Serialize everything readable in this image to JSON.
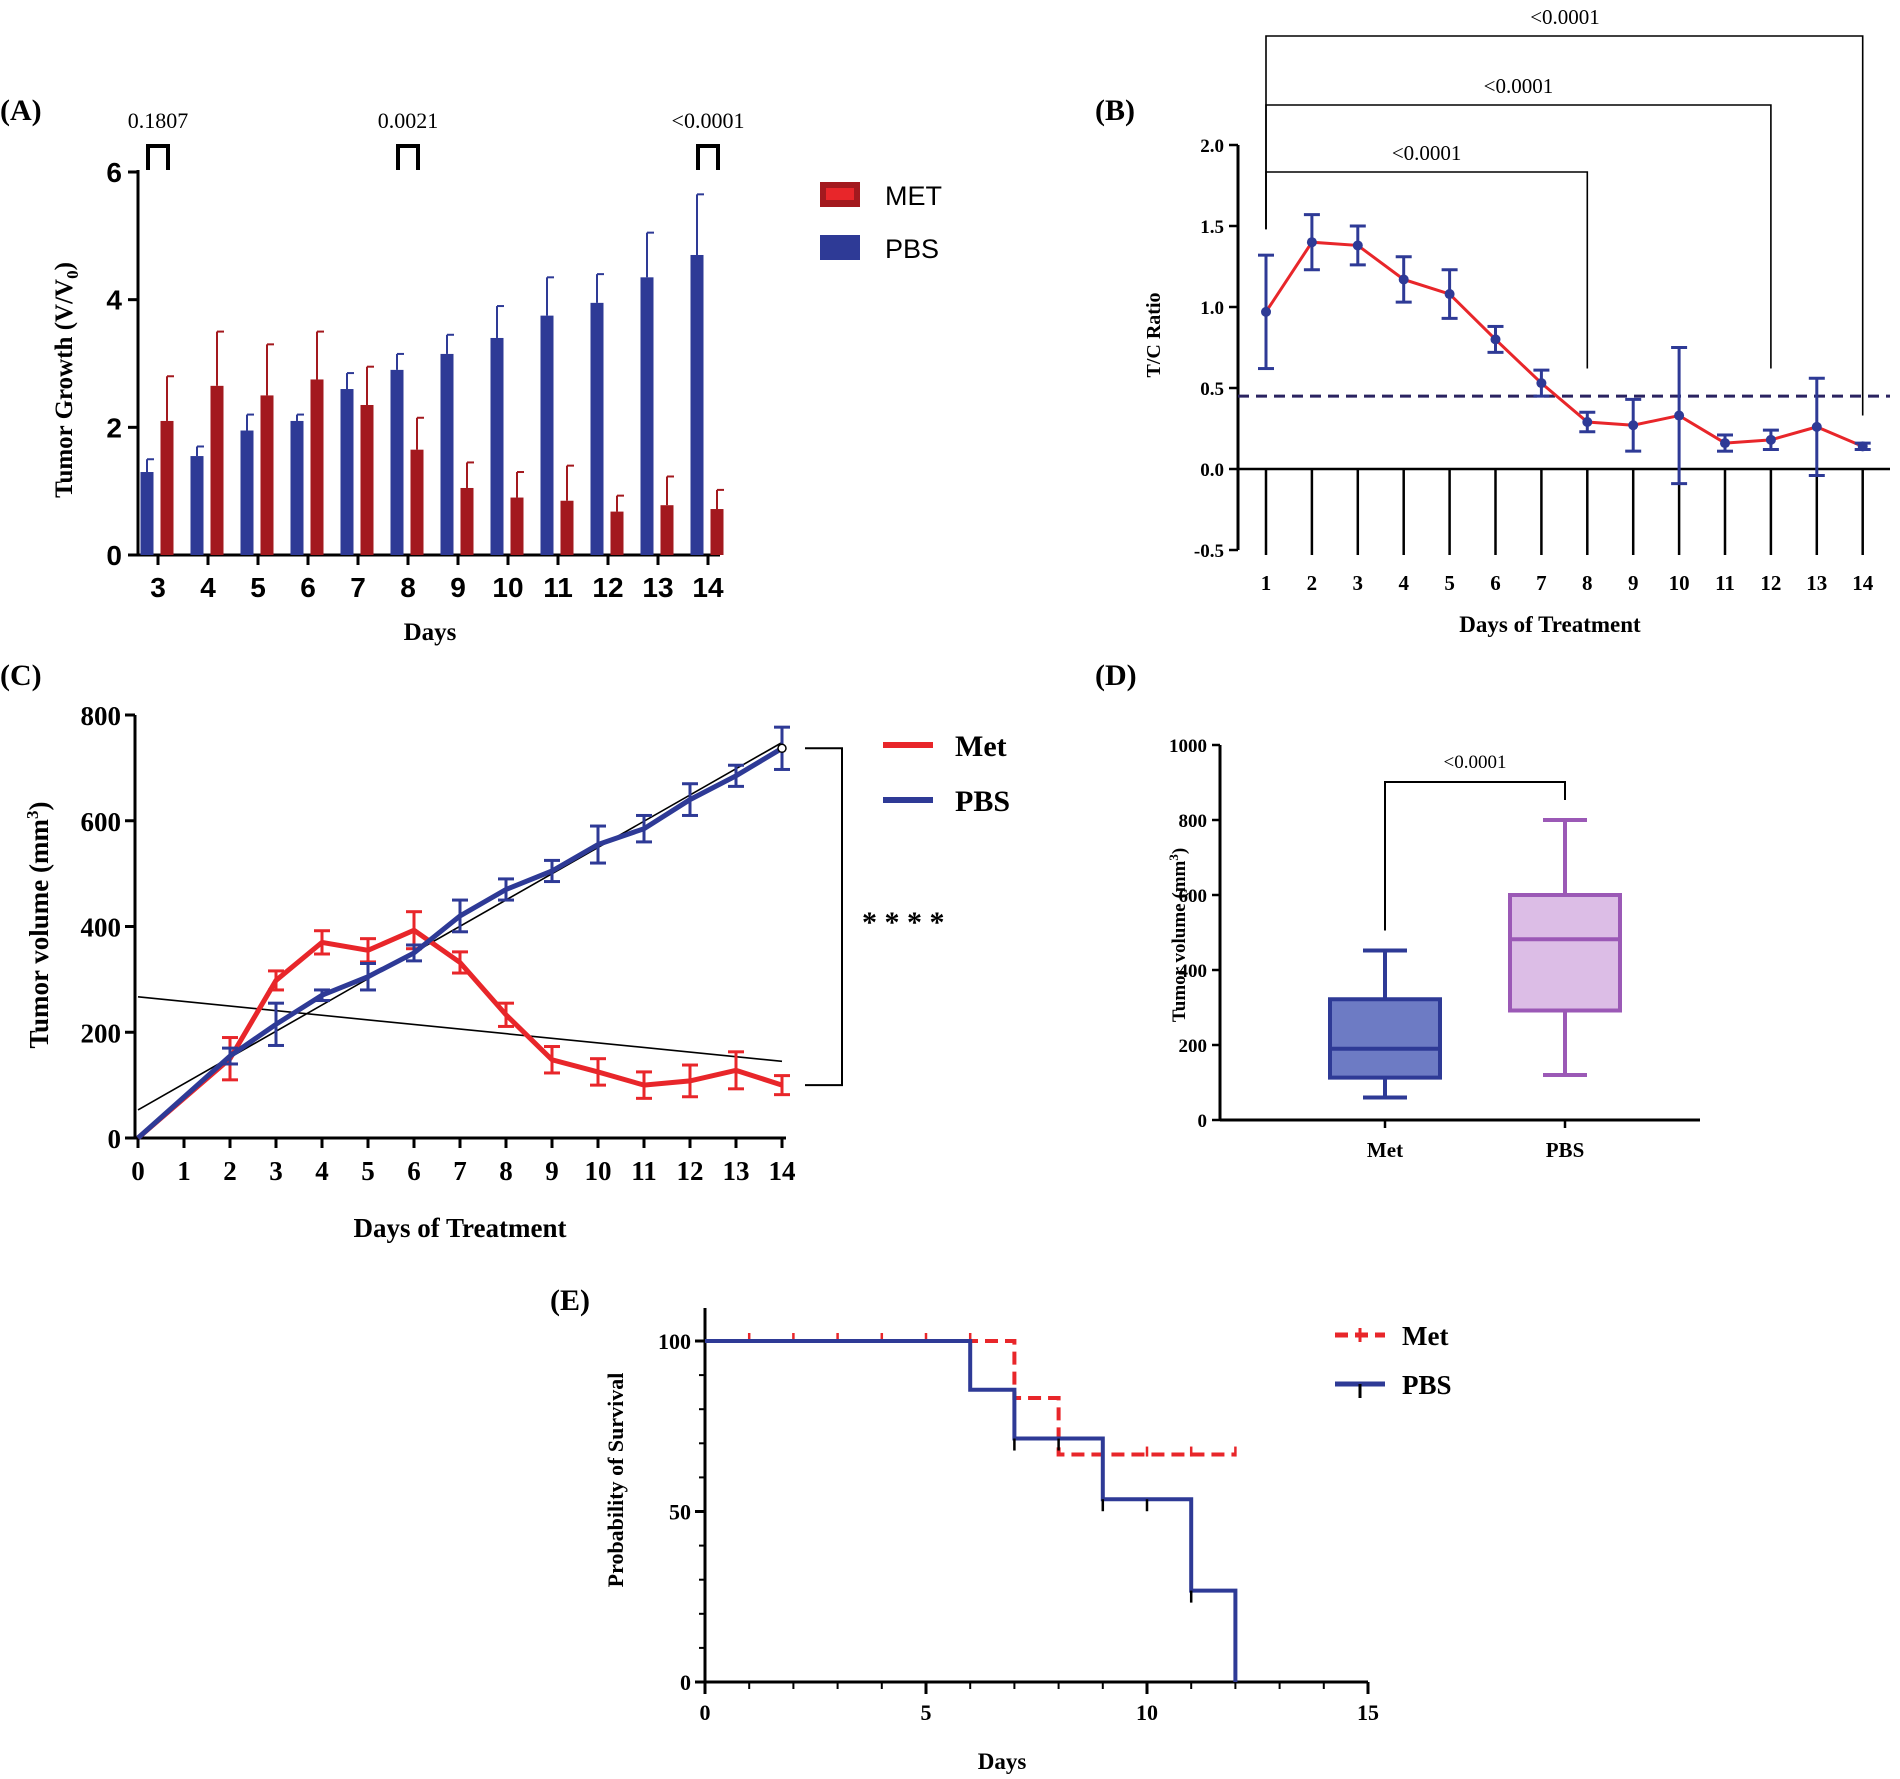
{
  "colors": {
    "red": "#e8262a",
    "darkred": "#a3191e",
    "blue": "#2e3a96",
    "purple": "#9b59b6",
    "black": "#000000"
  },
  "chart_data": [
    {
      "id": "A",
      "panel_label": "(A)",
      "type": "bar",
      "xlabel": "Days",
      "ylabel_main": "Tumor Growth (V/V",
      "ylabel_sub": "0",
      "ylabel_end": ")",
      "ylim": [
        0,
        6
      ],
      "yticks": [
        0,
        2,
        4,
        6
      ],
      "categories": [
        "3",
        "4",
        "5",
        "6",
        "7",
        "8",
        "9",
        "10",
        "11",
        "12",
        "13",
        "14"
      ],
      "series": [
        {
          "name": "PBS",
          "values": [
            1.3,
            1.55,
            1.95,
            2.1,
            2.6,
            2.9,
            3.15,
            3.4,
            3.75,
            3.95,
            4.35,
            4.7
          ],
          "errors": [
            0.2,
            0.15,
            0.25,
            0.1,
            0.25,
            0.25,
            0.3,
            0.5,
            0.6,
            0.45,
            0.7,
            0.95
          ]
        },
        {
          "name": "MET",
          "values": [
            2.1,
            2.65,
            2.5,
            2.75,
            2.35,
            1.65,
            1.05,
            0.9,
            0.85,
            0.68,
            0.78,
            0.72
          ],
          "errors": [
            0.7,
            0.85,
            0.8,
            0.75,
            0.6,
            0.5,
            0.4,
            0.4,
            0.55,
            0.25,
            0.45,
            0.3
          ]
        }
      ],
      "legend": [
        "MET",
        "PBS"
      ],
      "annotations": [
        {
          "text": "0.1807",
          "day": "3"
        },
        {
          "text": "0.0021",
          "day": "8"
        },
        {
          "text": "<0.0001",
          "day": "14"
        }
      ]
    },
    {
      "id": "B",
      "panel_label": "(B)",
      "type": "line",
      "xlabel": "Days of Treatment",
      "ylabel": "T/C Ratio",
      "ylim": [
        -0.5,
        2.0
      ],
      "yticks": [
        -0.5,
        0.0,
        0.5,
        1.0,
        1.5,
        2.0
      ],
      "ytick_labels": [
        "-0.5",
        "0.0",
        "0.5",
        "1.0",
        "1.5",
        "2.0"
      ],
      "x": [
        1,
        2,
        3,
        4,
        5,
        6,
        7,
        8,
        9,
        10,
        11,
        12,
        13,
        14
      ],
      "values": [
        0.97,
        1.4,
        1.38,
        1.17,
        1.08,
        0.8,
        0.53,
        0.29,
        0.27,
        0.33,
        0.16,
        0.18,
        0.26,
        0.14
      ],
      "errors": [
        0.35,
        0.17,
        0.12,
        0.14,
        0.15,
        0.08,
        0.08,
        0.06,
        0.16,
        0.42,
        0.05,
        0.06,
        0.3,
        0.02
      ],
      "threshold": 0.45,
      "brackets": [
        {
          "text": "<0.0001",
          "from": 1,
          "to": 8
        },
        {
          "text": "<0.0001",
          "from": 1,
          "to": 12
        },
        {
          "text": "<0.0001",
          "from": 1,
          "to": 14
        }
      ]
    },
    {
      "id": "C",
      "panel_label": "(C)",
      "type": "line",
      "xlabel": "Days of Treatment",
      "ylabel_main": "Tumor volume (mm",
      "ylabel_sup": "3",
      "ylabel_end": ")",
      "ylim": [
        0,
        800
      ],
      "yticks": [
        0,
        200,
        400,
        600,
        800
      ],
      "xticks": [
        0,
        1,
        2,
        3,
        4,
        5,
        6,
        7,
        8,
        9,
        10,
        11,
        12,
        13,
        14
      ],
      "series": [
        {
          "name": "Met",
          "x": [
            0,
            2,
            3,
            4,
            5,
            6,
            7,
            8,
            9,
            10,
            11,
            12,
            13,
            14
          ],
          "values": [
            0,
            150,
            298,
            370,
            355,
            393,
            332,
            233,
            148,
            125,
            100,
            108,
            128,
            100
          ],
          "errors": [
            0,
            40,
            18,
            22,
            22,
            35,
            20,
            22,
            25,
            25,
            25,
            30,
            35,
            18
          ]
        },
        {
          "name": "PBS",
          "x": [
            0,
            2,
            3,
            4,
            5,
            6,
            7,
            8,
            9,
            10,
            11,
            12,
            13,
            14
          ],
          "values": [
            0,
            155,
            215,
            270,
            305,
            350,
            420,
            470,
            505,
            555,
            585,
            640,
            685,
            737
          ],
          "errors": [
            0,
            15,
            40,
            10,
            25,
            15,
            30,
            20,
            20,
            35,
            25,
            30,
            20,
            40
          ]
        }
      ],
      "fit_lines": [
        {
          "x": [
            0,
            14
          ],
          "values": [
            53,
            748
          ]
        },
        {
          "x": [
            0,
            14
          ],
          "values": [
            267,
            145
          ]
        }
      ],
      "legend": [
        "Met",
        "PBS"
      ],
      "significance": "* * * *"
    },
    {
      "id": "D",
      "panel_label": "(D)",
      "type": "box",
      "categories": [
        "Met",
        "PBS"
      ],
      "ylabel_main": "Tumor volume (mm",
      "ylabel_sup": "3",
      "ylabel_end": ")",
      "ylim": [
        0,
        1000
      ],
      "yticks": [
        0,
        200,
        400,
        600,
        800,
        1000
      ],
      "boxes": [
        {
          "name": "Met",
          "min": 60,
          "q1": 113,
          "median": 190,
          "q3": 322,
          "max": 452
        },
        {
          "name": "PBS",
          "min": 120,
          "q1": 292,
          "median": 482,
          "q3": 600,
          "max": 800
        }
      ],
      "bracket": {
        "text": "<0.0001"
      }
    },
    {
      "id": "E",
      "panel_label": "(E)",
      "type": "line",
      "subtype": "survival",
      "xlabel": "Days",
      "ylabel": "Probability of Survival",
      "xlim": [
        0,
        15
      ],
      "ylim": [
        0,
        100
      ],
      "xticks": [
        0,
        5,
        10,
        15
      ],
      "yticks": [
        0,
        50,
        100
      ],
      "series": [
        {
          "name": "Met",
          "steps": [
            [
              0,
              100
            ],
            [
              7,
              100
            ],
            [
              7,
              83.3
            ],
            [
              8,
              83.3
            ],
            [
              8,
              66.7
            ],
            [
              12,
              66.7
            ]
          ],
          "censor_x": [
            1,
            2,
            3,
            4,
            5,
            6,
            9,
            10,
            11,
            12
          ]
        },
        {
          "name": "PBS",
          "steps": [
            [
              0,
              100
            ],
            [
              6,
              100
            ],
            [
              6,
              85.7
            ],
            [
              7,
              85.7
            ],
            [
              7,
              71.4
            ],
            [
              9,
              71.4
            ],
            [
              9,
              53.6
            ],
            [
              11,
              53.6
            ],
            [
              11,
              26.8
            ],
            [
              12,
              26.8
            ],
            [
              12,
              0
            ]
          ],
          "censor_x": [
            7,
            8,
            9,
            10,
            11
          ]
        }
      ],
      "legend": [
        "Met",
        "PBS"
      ]
    }
  ]
}
